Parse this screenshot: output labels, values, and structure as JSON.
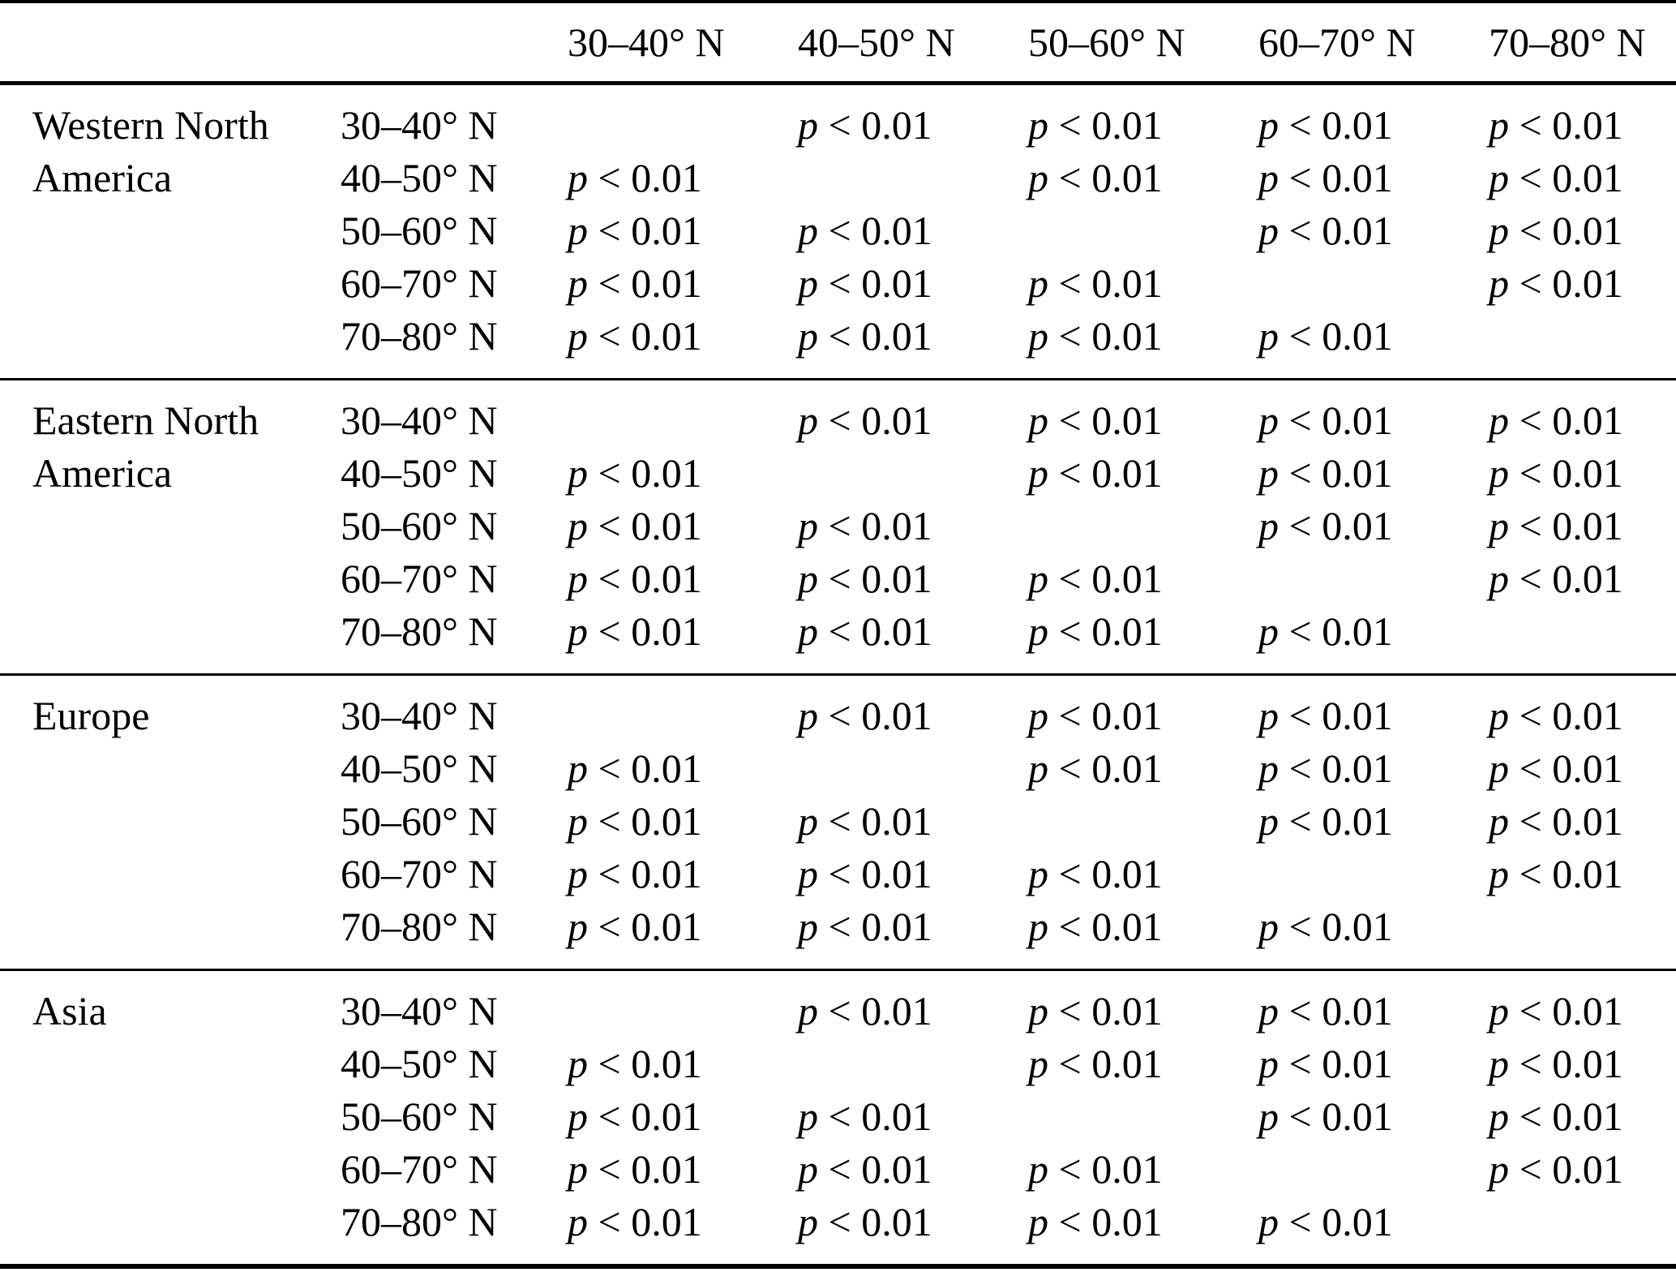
{
  "table": {
    "description_value_text": "p < 0.01",
    "column_headers": [
      "30–40° N",
      "40–50° N",
      "50–60° N",
      "60–70° N",
      "70–80° N"
    ],
    "regions": [
      {
        "name": "Western North America",
        "name_lines": [
          "Western North",
          "America"
        ],
        "rows": [
          {
            "label": "30–40° N",
            "cells": [
              "",
              "p < 0.01",
              "p < 0.01",
              "p < 0.01",
              "p < 0.01"
            ]
          },
          {
            "label": "40–50° N",
            "cells": [
              "p < 0.01",
              "",
              "p < 0.01",
              "p < 0.01",
              "p < 0.01"
            ]
          },
          {
            "label": "50–60° N",
            "cells": [
              "p < 0.01",
              "p < 0.01",
              "",
              "p < 0.01",
              "p < 0.01"
            ]
          },
          {
            "label": "60–70° N",
            "cells": [
              "p < 0.01",
              "p < 0.01",
              "p < 0.01",
              "",
              "p < 0.01"
            ]
          },
          {
            "label": "70–80° N",
            "cells": [
              "p < 0.01",
              "p < 0.01",
              "p < 0.01",
              "p < 0.01",
              ""
            ]
          }
        ]
      },
      {
        "name": "Eastern North America",
        "name_lines": [
          "Eastern North",
          "America"
        ],
        "rows": [
          {
            "label": "30–40° N",
            "cells": [
              "",
              "p < 0.01",
              "p < 0.01",
              "p < 0.01",
              "p < 0.01"
            ]
          },
          {
            "label": "40–50° N",
            "cells": [
              "p < 0.01",
              "",
              "p < 0.01",
              "p < 0.01",
              "p < 0.01"
            ]
          },
          {
            "label": "50–60° N",
            "cells": [
              "p < 0.01",
              "p < 0.01",
              "",
              "p < 0.01",
              "p < 0.01"
            ]
          },
          {
            "label": "60–70° N",
            "cells": [
              "p < 0.01",
              "p < 0.01",
              "p < 0.01",
              "",
              "p < 0.01"
            ]
          },
          {
            "label": "70–80° N",
            "cells": [
              "p < 0.01",
              "p < 0.01",
              "p < 0.01",
              "p < 0.01",
              ""
            ]
          }
        ]
      },
      {
        "name": "Europe",
        "name_lines": [
          "Europe",
          ""
        ],
        "rows": [
          {
            "label": "30–40° N",
            "cells": [
              "",
              "p < 0.01",
              "p < 0.01",
              "p < 0.01",
              "p < 0.01"
            ]
          },
          {
            "label": "40–50° N",
            "cells": [
              "p < 0.01",
              "",
              "p < 0.01",
              "p < 0.01",
              "p < 0.01"
            ]
          },
          {
            "label": "50–60° N",
            "cells": [
              "p < 0.01",
              "p < 0.01",
              "",
              "p < 0.01",
              "p < 0.01"
            ]
          },
          {
            "label": "60–70° N",
            "cells": [
              "p < 0.01",
              "p < 0.01",
              "p < 0.01",
              "",
              "p < 0.01"
            ]
          },
          {
            "label": "70–80° N",
            "cells": [
              "p < 0.01",
              "p < 0.01",
              "p < 0.01",
              "p < 0.01",
              ""
            ]
          }
        ]
      },
      {
        "name": "Asia",
        "name_lines": [
          "Asia",
          ""
        ],
        "rows": [
          {
            "label": "30–40° N",
            "cells": [
              "",
              "p < 0.01",
              "p < 0.01",
              "p < 0.01",
              "p < 0.01"
            ]
          },
          {
            "label": "40–50° N",
            "cells": [
              "p < 0.01",
              "",
              "p < 0.01",
              "p < 0.01",
              "p < 0.01"
            ]
          },
          {
            "label": "50–60° N",
            "cells": [
              "p < 0.01",
              "p < 0.01",
              "",
              "p < 0.01",
              "p < 0.01"
            ]
          },
          {
            "label": "60–70° N",
            "cells": [
              "p < 0.01",
              "p < 0.01",
              "p < 0.01",
              "",
              "p < 0.01"
            ]
          },
          {
            "label": "70–80° N",
            "cells": [
              "p < 0.01",
              "p < 0.01",
              "p < 0.01",
              "p < 0.01",
              ""
            ]
          }
        ]
      }
    ]
  }
}
